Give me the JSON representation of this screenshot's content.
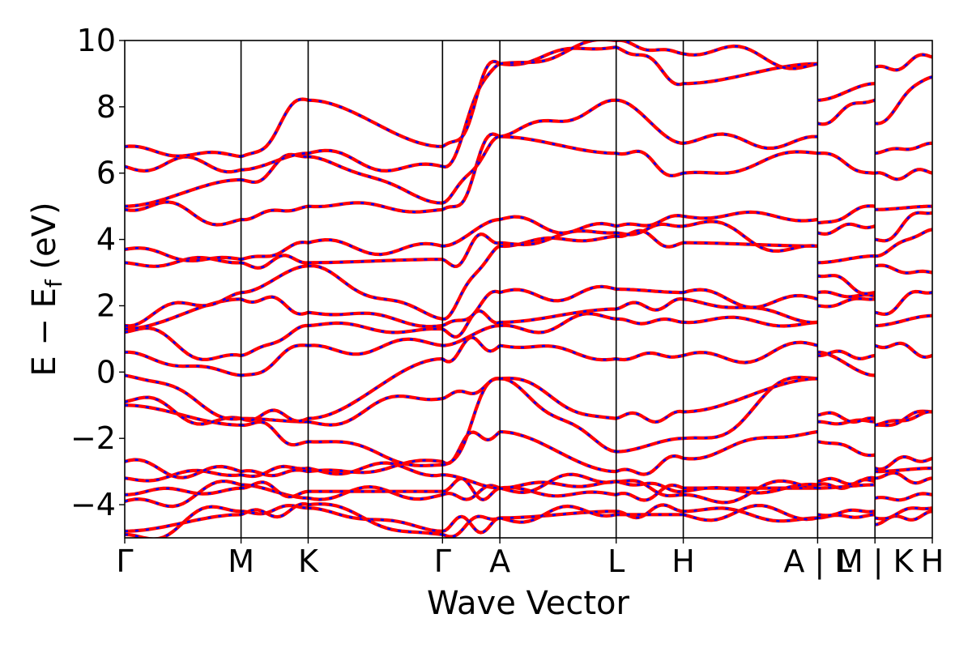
{
  "chart_data": {
    "type": "line",
    "xlabel": "Wave Vector",
    "ylabel": "E − E_f (eV)",
    "ylabel_main": "E − E",
    "ylabel_sub": "f",
    "ylabel_unit": " (eV)",
    "ylim": [
      -5,
      10
    ],
    "yticks": [
      -4,
      -2,
      0,
      2,
      4,
      6,
      8,
      10
    ],
    "ytick_labels": [
      "−4",
      "−2",
      "0",
      "2",
      "4",
      "6",
      "8",
      "10"
    ],
    "kpath": [
      {
        "label": "Γ",
        "pos": 0.0
      },
      {
        "label": "M",
        "pos": 1.0
      },
      {
        "label": "K",
        "pos": 1.577
      },
      {
        "label": "Γ",
        "pos": 2.732
      },
      {
        "label": "A",
        "pos": 3.225
      },
      {
        "label": "L",
        "pos": 4.225
      },
      {
        "label": "H",
        "pos": 4.802
      },
      {
        "label": "A | L",
        "pos": 5.957
      },
      {
        "label": "M | K",
        "pos": 6.45
      },
      {
        "label": "H",
        "pos": 6.943
      }
    ],
    "xlim": [
      0,
      6.943
    ],
    "grid": false,
    "series_styles": [
      {
        "color": "#ff0000",
        "style": "solid"
      },
      {
        "color": "#0000ff",
        "style": "dotted"
      }
    ],
    "band_anchor_energies": {
      "columns": [
        "Γ",
        "M",
        "K",
        "Γ",
        "A",
        "L",
        "H",
        "A",
        "L",
        "M",
        "K",
        "H"
      ],
      "bands": [
        [
          -4.9,
          -4.2,
          -4.1,
          -4.8,
          -4.4,
          -4.2,
          -4.2,
          -4.4,
          -4.4,
          -4.3,
          -4.6,
          -4.2
        ],
        [
          -4.8,
          -4.3,
          -4.0,
          -4.9,
          -4.4,
          -4.3,
          -4.3,
          -4.4,
          -4.3,
          -4.2,
          -4.4,
          -4.1
        ],
        [
          -3.9,
          -3.4,
          -3.8,
          -3.7,
          -3.5,
          -3.7,
          -3.5,
          -3.5,
          -3.4,
          -3.3,
          -3.8,
          -3.7
        ],
        [
          -3.7,
          -3.5,
          -3.6,
          -3.6,
          -3.5,
          -3.3,
          -3.7,
          -3.5,
          -3.5,
          -3.4,
          -3.2,
          -3.2
        ],
        [
          -3.2,
          -3.1,
          -2.9,
          -3.1,
          -3.5,
          -3.3,
          -3.6,
          -3.4,
          -3.3,
          -3.2,
          -3.0,
          -2.9
        ],
        [
          -2.7,
          -3.0,
          -3.0,
          -2.7,
          -1.8,
          -3.0,
          -2.6,
          -1.8,
          -2.1,
          -2.5,
          -2.9,
          -2.6
        ],
        [
          -1.0,
          -1.6,
          -2.1,
          -2.8,
          -0.2,
          -2.4,
          -2.0,
          -0.2,
          -1.5,
          -1.5,
          -1.6,
          -1.2
        ],
        [
          -0.9,
          -1.4,
          -1.5,
          -0.8,
          -0.2,
          -1.4,
          -1.2,
          -0.2,
          -1.3,
          -1.4,
          -1.6,
          -1.2
        ],
        [
          -0.1,
          -1.4,
          -1.4,
          0.4,
          0.8,
          0.4,
          0.5,
          0.8,
          0.6,
          -0.1,
          0.8,
          0.5
        ],
        [
          0.6,
          -0.1,
          0.8,
          0.8,
          1.4,
          1.6,
          1.5,
          1.5,
          0.5,
          0.5,
          1.4,
          1.7
        ],
        [
          1.2,
          0.5,
          1.4,
          1.3,
          1.5,
          1.9,
          2.2,
          1.5,
          2.0,
          2.2,
          1.8,
          2.4
        ],
        [
          1.3,
          2.2,
          1.8,
          1.4,
          2.4,
          2.5,
          2.4,
          2.2,
          2.4,
          2.3,
          3.2,
          3.0
        ],
        [
          1.4,
          2.4,
          3.2,
          1.6,
          3.8,
          4.1,
          3.9,
          3.8,
          2.9,
          2.4,
          3.5,
          4.3
        ],
        [
          3.3,
          3.3,
          3.3,
          3.4,
          3.9,
          4.2,
          4.4,
          3.8,
          3.3,
          3.5,
          4.0,
          4.8
        ],
        [
          3.7,
          3.4,
          3.9,
          3.8,
          4.6,
          4.4,
          4.7,
          4.6,
          4.2,
          4.4,
          4.9,
          5.0
        ],
        [
          4.9,
          4.6,
          5.0,
          4.9,
          7.1,
          6.6,
          6.0,
          6.6,
          4.5,
          5.0,
          6.0,
          6.0
        ],
        [
          5.0,
          5.8,
          6.5,
          5.1,
          7.1,
          8.2,
          6.9,
          7.1,
          6.6,
          6.0,
          6.6,
          6.9
        ],
        [
          6.2,
          6.1,
          6.6,
          6.2,
          9.3,
          9.8,
          8.7,
          9.3,
          7.5,
          8.2,
          7.5,
          8.9
        ],
        [
          6.8,
          6.5,
          8.2,
          6.8,
          9.3,
          10.0,
          9.6,
          9.3,
          8.2,
          8.7,
          9.2,
          9.5
        ]
      ]
    }
  }
}
